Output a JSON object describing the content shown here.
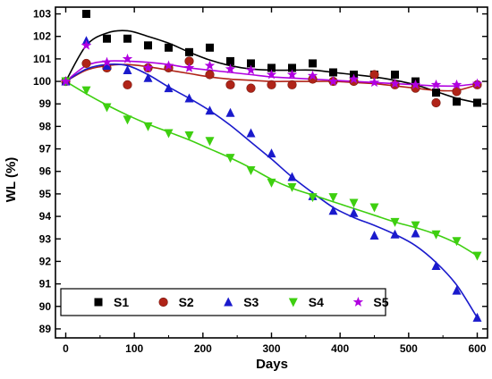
{
  "chart_data": {
    "type": "scatter",
    "xlabel": "Days",
    "ylabel": "WL (%)",
    "xlim": [
      -15,
      615
    ],
    "ylim": [
      88.6,
      103.3
    ],
    "x_ticks": [
      0,
      100,
      200,
      300,
      400,
      500,
      600
    ],
    "y_ticks": [
      89,
      90,
      91,
      92,
      93,
      94,
      95,
      96,
      97,
      98,
      99,
      100,
      101,
      102,
      103
    ],
    "grid": false,
    "legend_position": "bottom-left",
    "series": [
      {
        "name": "S1",
        "color": "#000000",
        "marker": "square",
        "points": [
          [
            0,
            100.0
          ],
          [
            30,
            103.0
          ],
          [
            60,
            101.9
          ],
          [
            90,
            101.9
          ],
          [
            120,
            101.6
          ],
          [
            150,
            101.5
          ],
          [
            180,
            101.3
          ],
          [
            210,
            101.5
          ],
          [
            240,
            100.9
          ],
          [
            270,
            100.8
          ],
          [
            300,
            100.6
          ],
          [
            330,
            100.6
          ],
          [
            360,
            100.8
          ],
          [
            390,
            100.4
          ],
          [
            420,
            100.3
          ],
          [
            450,
            100.3
          ],
          [
            480,
            100.3
          ],
          [
            510,
            100.0
          ],
          [
            540,
            99.5
          ],
          [
            570,
            99.1
          ],
          [
            600,
            99.05
          ]
        ],
        "fit": [
          [
            0,
            100.0
          ],
          [
            30,
            101.6
          ],
          [
            60,
            102.15
          ],
          [
            90,
            102.25
          ],
          [
            120,
            102.0
          ],
          [
            150,
            101.7
          ],
          [
            180,
            101.3
          ],
          [
            210,
            100.95
          ],
          [
            240,
            100.7
          ],
          [
            270,
            100.55
          ],
          [
            300,
            100.5
          ],
          [
            330,
            100.5
          ],
          [
            360,
            100.5
          ],
          [
            390,
            100.4
          ],
          [
            420,
            100.3
          ],
          [
            450,
            100.2
          ],
          [
            480,
            100.05
          ],
          [
            510,
            99.85
          ],
          [
            540,
            99.55
          ],
          [
            570,
            99.25
          ],
          [
            600,
            99.05
          ]
        ]
      },
      {
        "name": "S2",
        "color": "#b02418",
        "marker": "circle",
        "points": [
          [
            0,
            100.0
          ],
          [
            30,
            100.8
          ],
          [
            60,
            100.6
          ],
          [
            90,
            99.85
          ],
          [
            120,
            100.6
          ],
          [
            150,
            100.6
          ],
          [
            180,
            100.9
          ],
          [
            210,
            100.3
          ],
          [
            240,
            99.85
          ],
          [
            270,
            99.7
          ],
          [
            300,
            99.85
          ],
          [
            330,
            99.85
          ],
          [
            360,
            100.1
          ],
          [
            390,
            100.0
          ],
          [
            420,
            100.0
          ],
          [
            450,
            100.3
          ],
          [
            480,
            99.85
          ],
          [
            510,
            99.7
          ],
          [
            540,
            99.05
          ],
          [
            570,
            99.55
          ],
          [
            600,
            99.85
          ]
        ],
        "fit": [
          [
            0,
            100.0
          ],
          [
            30,
            100.5
          ],
          [
            60,
            100.7
          ],
          [
            90,
            100.75
          ],
          [
            120,
            100.65
          ],
          [
            150,
            100.5
          ],
          [
            180,
            100.35
          ],
          [
            210,
            100.2
          ],
          [
            240,
            100.1
          ],
          [
            270,
            100.05
          ],
          [
            300,
            100.0
          ],
          [
            330,
            100.0
          ],
          [
            360,
            100.0
          ],
          [
            390,
            100.0
          ],
          [
            420,
            99.95
          ],
          [
            450,
            99.9
          ],
          [
            480,
            99.8
          ],
          [
            510,
            99.7
          ],
          [
            540,
            99.6
          ],
          [
            570,
            99.6
          ],
          [
            600,
            99.85
          ]
        ]
      },
      {
        "name": "S3",
        "color": "#1a1acc",
        "marker": "triangle-up",
        "points": [
          [
            0,
            100.0
          ],
          [
            30,
            101.8
          ],
          [
            60,
            100.7
          ],
          [
            90,
            100.5
          ],
          [
            120,
            100.15
          ],
          [
            150,
            99.7
          ],
          [
            180,
            99.25
          ],
          [
            210,
            98.7
          ],
          [
            240,
            98.6
          ],
          [
            270,
            97.7
          ],
          [
            300,
            96.8
          ],
          [
            330,
            95.75
          ],
          [
            360,
            94.9
          ],
          [
            390,
            94.25
          ],
          [
            420,
            94.15
          ],
          [
            450,
            93.15
          ],
          [
            480,
            93.2
          ],
          [
            510,
            93.25
          ],
          [
            540,
            91.8
          ],
          [
            570,
            90.7
          ],
          [
            600,
            89.5
          ]
        ],
        "fit": [
          [
            0,
            100.0
          ],
          [
            30,
            100.55
          ],
          [
            60,
            100.75
          ],
          [
            90,
            100.7
          ],
          [
            120,
            100.3
          ],
          [
            150,
            99.75
          ],
          [
            180,
            99.25
          ],
          [
            210,
            98.7
          ],
          [
            240,
            98.05
          ],
          [
            270,
            97.3
          ],
          [
            300,
            96.55
          ],
          [
            330,
            95.75
          ],
          [
            360,
            95.05
          ],
          [
            390,
            94.4
          ],
          [
            420,
            93.95
          ],
          [
            450,
            93.6
          ],
          [
            480,
            93.2
          ],
          [
            510,
            92.7
          ],
          [
            540,
            91.95
          ],
          [
            570,
            90.95
          ],
          [
            600,
            89.5
          ]
        ]
      },
      {
        "name": "S4",
        "color": "#3ecf10",
        "marker": "triangle-down",
        "points": [
          [
            0,
            100.0
          ],
          [
            30,
            99.6
          ],
          [
            60,
            98.85
          ],
          [
            90,
            98.3
          ],
          [
            120,
            98.0
          ],
          [
            150,
            97.7
          ],
          [
            180,
            97.6
          ],
          [
            210,
            97.35
          ],
          [
            240,
            96.6
          ],
          [
            270,
            96.05
          ],
          [
            300,
            95.5
          ],
          [
            330,
            95.3
          ],
          [
            360,
            94.85
          ],
          [
            390,
            94.85
          ],
          [
            420,
            94.6
          ],
          [
            450,
            94.4
          ],
          [
            480,
            93.75
          ],
          [
            510,
            93.6
          ],
          [
            540,
            93.2
          ],
          [
            570,
            92.9
          ],
          [
            600,
            92.25
          ]
        ],
        "fit": [
          [
            0,
            100.0
          ],
          [
            30,
            99.45
          ],
          [
            60,
            98.95
          ],
          [
            90,
            98.5
          ],
          [
            120,
            98.1
          ],
          [
            150,
            97.75
          ],
          [
            180,
            97.4
          ],
          [
            210,
            97.0
          ],
          [
            240,
            96.6
          ],
          [
            270,
            96.15
          ],
          [
            300,
            95.65
          ],
          [
            330,
            95.25
          ],
          [
            360,
            94.95
          ],
          [
            390,
            94.65
          ],
          [
            420,
            94.35
          ],
          [
            450,
            94.05
          ],
          [
            480,
            93.75
          ],
          [
            510,
            93.5
          ],
          [
            540,
            93.2
          ],
          [
            570,
            92.8
          ],
          [
            600,
            92.25
          ]
        ]
      },
      {
        "name": "S5",
        "color": "#b000e0",
        "marker": "star",
        "points": [
          [
            0,
            100.0
          ],
          [
            30,
            101.6
          ],
          [
            60,
            100.85
          ],
          [
            90,
            101.0
          ],
          [
            120,
            100.6
          ],
          [
            150,
            100.7
          ],
          [
            180,
            100.6
          ],
          [
            210,
            100.7
          ],
          [
            240,
            100.55
          ],
          [
            270,
            100.5
          ],
          [
            300,
            100.3
          ],
          [
            330,
            100.3
          ],
          [
            360,
            100.25
          ],
          [
            390,
            100.0
          ],
          [
            420,
            100.1
          ],
          [
            450,
            99.95
          ],
          [
            480,
            99.9
          ],
          [
            510,
            99.85
          ],
          [
            540,
            99.85
          ],
          [
            570,
            99.85
          ],
          [
            600,
            99.9
          ]
        ],
        "fit": [
          [
            0,
            100.0
          ],
          [
            30,
            100.7
          ],
          [
            60,
            100.9
          ],
          [
            90,
            100.9
          ],
          [
            120,
            100.85
          ],
          [
            150,
            100.75
          ],
          [
            180,
            100.6
          ],
          [
            210,
            100.5
          ],
          [
            240,
            100.4
          ],
          [
            270,
            100.3
          ],
          [
            300,
            100.2
          ],
          [
            330,
            100.15
          ],
          [
            360,
            100.1
          ],
          [
            390,
            100.05
          ],
          [
            420,
            100.0
          ],
          [
            450,
            99.95
          ],
          [
            480,
            99.9
          ],
          [
            510,
            99.85
          ],
          [
            540,
            99.8
          ],
          [
            570,
            99.8
          ],
          [
            600,
            99.9
          ]
        ]
      }
    ]
  }
}
